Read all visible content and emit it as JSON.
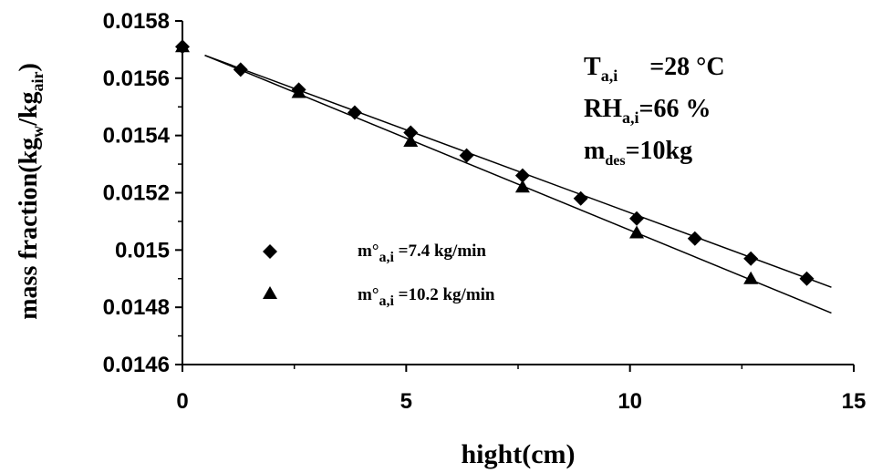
{
  "chart_data": {
    "type": "scatter",
    "xlabel": "hight",
    "xlabel_unit": "(cm)",
    "ylabel_main": "mass fraction",
    "ylabel_unit_open": "(kg",
    "ylabel_unit_w": "w",
    "ylabel_unit_slash": "/kg",
    "ylabel_unit_air": "air",
    "ylabel_unit_close": ")",
    "xlim": [
      0,
      15
    ],
    "ylim": [
      0.0146,
      0.0158
    ],
    "x_ticks": [
      {
        "value": 0,
        "label": "0"
      },
      {
        "value": 5,
        "label": "5"
      },
      {
        "value": 10,
        "label": "10"
      },
      {
        "value": 15,
        "label": "15"
      }
    ],
    "y_ticks": [
      {
        "value": 0.0146,
        "label": "0.0146"
      },
      {
        "value": 0.0148,
        "label": "0.0148"
      },
      {
        "value": 0.015,
        "label": "0.015"
      },
      {
        "value": 0.0152,
        "label": "0.0152"
      },
      {
        "value": 0.0154,
        "label": "0.0154"
      },
      {
        "value": 0.0156,
        "label": "0.0156"
      },
      {
        "value": 0.0158,
        "label": "0.0158"
      }
    ],
    "grid": false,
    "legend_placement": "lower-left",
    "series": [
      {
        "name_main": "m°",
        "name_sub": "a,i",
        "name_value": " =7.4 kg/min",
        "marker": "diamond",
        "x": [
          0.0,
          1.3,
          2.6,
          3.85,
          5.1,
          6.35,
          7.6,
          8.9,
          10.15,
          11.45,
          12.7,
          13.95
        ],
        "y": [
          0.01571,
          0.01563,
          0.01556,
          0.01548,
          0.01541,
          0.01533,
          0.01526,
          0.01518,
          0.01511,
          0.01504,
          0.01497,
          0.0149
        ],
        "fit": {
          "x": [
            0.5,
            14.5
          ],
          "y": [
            0.01568,
            0.01487
          ]
        }
      },
      {
        "name_main": "m°",
        "name_sub": "a,i",
        "name_value": " =10.2 kg/min",
        "marker": "triangle",
        "x": [
          0.0,
          2.6,
          5.1,
          7.6,
          10.15,
          12.7
        ],
        "y": [
          0.01571,
          0.01555,
          0.01538,
          0.01522,
          0.01506,
          0.0149
        ],
        "fit": {
          "x": [
            0.5,
            14.5
          ],
          "y": [
            0.01568,
            0.01478
          ]
        }
      }
    ],
    "annotations": [
      {
        "main": "T",
        "sub": "a,i",
        "rest": "     =28 °C"
      },
      {
        "main": "RH",
        "sub": "a,i",
        "rest": "=66 %"
      },
      {
        "main": "m",
        "sub": "des",
        "rest": "=10kg"
      }
    ],
    "colors": {
      "marker": "#000000",
      "line": "#000000",
      "background": "#ffffff"
    }
  }
}
